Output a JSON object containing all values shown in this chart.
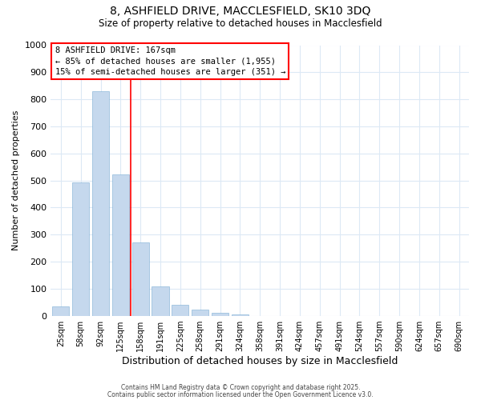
{
  "title_line1": "8, ASHFIELD DRIVE, MACCLESFIELD, SK10 3DQ",
  "title_line2": "Size of property relative to detached houses in Macclesfield",
  "categories": [
    "25sqm",
    "58sqm",
    "92sqm",
    "125sqm",
    "158sqm",
    "191sqm",
    "225sqm",
    "258sqm",
    "291sqm",
    "324sqm",
    "358sqm",
    "391sqm",
    "424sqm",
    "457sqm",
    "491sqm",
    "524sqm",
    "557sqm",
    "590sqm",
    "624sqm",
    "657sqm",
    "690sqm"
  ],
  "values": [
    33,
    493,
    830,
    522,
    270,
    107,
    40,
    22,
    10,
    5,
    0,
    0,
    0,
    0,
    0,
    0,
    0,
    0,
    0,
    0,
    0
  ],
  "bar_color": "#c5d8ed",
  "bar_edge_color": "#7badd4",
  "ylim": [
    0,
    1000
  ],
  "yticks": [
    0,
    100,
    200,
    300,
    400,
    500,
    600,
    700,
    800,
    900,
    1000
  ],
  "ylabel": "Number of detached properties",
  "xlabel": "Distribution of detached houses by size in Macclesfield",
  "red_line_index": 4,
  "annotation_title": "8 ASHFIELD DRIVE: 167sqm",
  "annotation_line2": "← 85% of detached houses are smaller (1,955)",
  "annotation_line3": "15% of semi-detached houses are larger (351) →",
  "background_color": "#ffffff",
  "grid_color": "#dce9f5",
  "footer_line1": "Contains HM Land Registry data © Crown copyright and database right 2025.",
  "footer_line2": "Contains public sector information licensed under the Open Government Licence v3.0."
}
